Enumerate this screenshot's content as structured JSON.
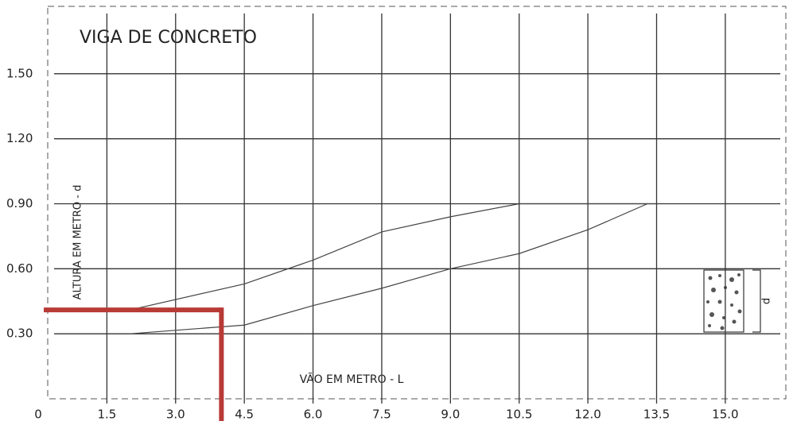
{
  "chart_data": {
    "type": "band",
    "title": "VIGA DE CONCRETO",
    "y_label": "ALTURA EM METRO - d",
    "x_label": "VÃO EM METRO - L",
    "beam_label": "d",
    "xlim": [
      0,
      16.2
    ],
    "ylim": [
      0,
      1.8
    ],
    "xticks": [
      0,
      1.5,
      {
        "value": 3,
        "label": "3.0"
      },
      4.5,
      {
        "value": 6,
        "label": "6.0"
      },
      7.5,
      {
        "value": 9,
        "label": "9.0"
      },
      10.5,
      {
        "value": 12,
        "label": "12.0"
      },
      13.5,
      {
        "value": 15,
        "label": "15.0"
      }
    ],
    "yticks": [
      {
        "value": 0.3,
        "label": "0.30"
      },
      {
        "value": 0.6,
        "label": "0.60"
      },
      {
        "value": 0.9,
        "label": "0.90"
      },
      {
        "value": 1.2,
        "label": "1.20"
      },
      {
        "value": 1.5,
        "label": "1.50"
      }
    ],
    "grid": true,
    "color": "#444444",
    "upper": {
      "x": [
        2.0,
        4.5,
        6.0,
        7.5,
        9.0,
        10.5,
        13.5
      ],
      "y": [
        0.41,
        0.53,
        0.64,
        0.77,
        0.84,
        0.9,
        0.9
      ]
    },
    "lower": {
      "x": [
        2.0,
        4.5,
        6.0,
        7.5,
        9.0,
        10.5,
        12.0,
        13.3
      ],
      "y": [
        0.3,
        0.34,
        0.43,
        0.51,
        0.6,
        0.67,
        0.78,
        0.9
      ]
    },
    "reading": {
      "x": 4.0,
      "y": 0.41,
      "color": "#b83a36"
    }
  }
}
